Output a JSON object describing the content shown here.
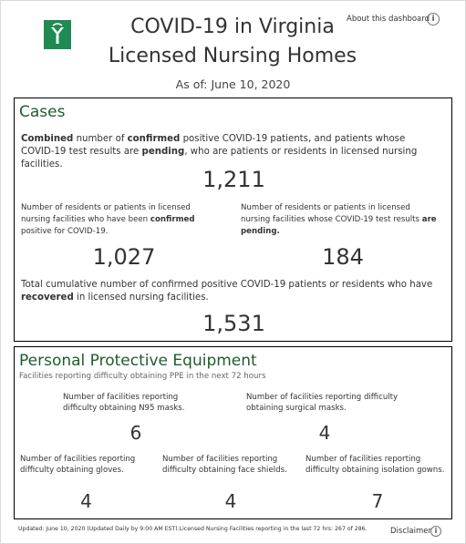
{
  "header": {
    "title_line1": "COVID-19 in Virginia",
    "title_line2": "Licensed Nursing Homes",
    "as_of": "As of:  June 10, 2020",
    "about_link": "About this dashboard",
    "logo_icon": "vdh-logo-icon",
    "brand_color": "#1f8a52"
  },
  "cases": {
    "title": "Cases",
    "combined": {
      "desc_parts": [
        "Combined",
        " number of ",
        "confirmed",
        " positive COVID-19 patients, and patients whose COVID-19 test results are ",
        "pending",
        ", who are patients or residents in licensed nursing facilities."
      ],
      "value": "1,211"
    },
    "confirmed": {
      "desc_parts": [
        "Number of residents or patients in licensed nursing facilities who have been ",
        "confirmed",
        " positive for COVID-19."
      ],
      "value": "1,027"
    },
    "pending": {
      "desc_parts": [
        "Number of residents or patients in licensed nursing facilities whose COVID-19 test results ",
        "are pending."
      ],
      "value": "184"
    },
    "recovered": {
      "desc_parts": [
        "Total cumulative number of confirmed positive COVID-19 patients or residents who have ",
        "recovered",
        " in licensed nursing facilities."
      ],
      "value": "1,531"
    }
  },
  "ppe": {
    "title": "Personal Protective Equipment",
    "subtitle": "Facilities reporting difficulty obtaining PPE in the next 72 hours",
    "n95": {
      "label": "Number of facilities reporting difficulty obtaining N95 masks.",
      "value": "6"
    },
    "surgical": {
      "label": "Number of facilities reporting difficulty obtaining surgical masks.",
      "value": "4"
    },
    "gloves": {
      "label": "Number of facilities reporting difficulty obtaining gloves.",
      "value": "4"
    },
    "face_shields": {
      "label": "Number of facilities reporting difficulty obtaining face shields.",
      "value": "4"
    },
    "gowns": {
      "label": "Number of facilities reporting difficulty obtaining isolation gowns.",
      "value": "7"
    }
  },
  "footer": {
    "updated": "Updated: June 10, 2020 (Updated Daily by 9:00 AM EST).Licensed Nursing Facilities reporting in the last 72 hrs: 267 of 286.",
    "disclaimer": "Disclaimer",
    "info_glyph": "i"
  }
}
